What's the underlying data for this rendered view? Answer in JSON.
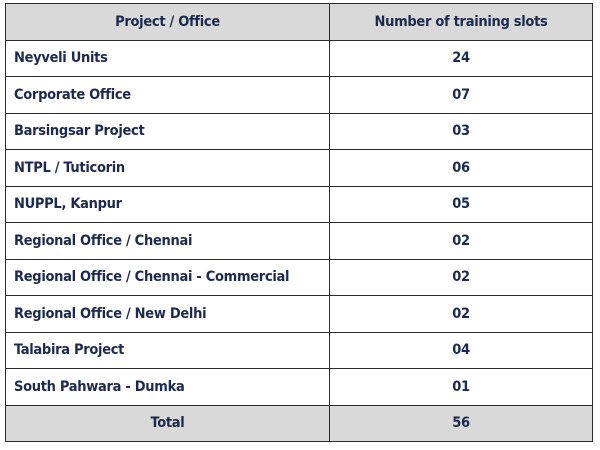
{
  "table": {
    "headers": [
      "Project / Office",
      "Number of training slots"
    ],
    "rows": [
      {
        "name": "Neyveli Units",
        "slots": "24"
      },
      {
        "name": "Corporate Office",
        "slots": "07"
      },
      {
        "name": "Barsingsar Project",
        "slots": "03"
      },
      {
        "name": "NTPL / Tuticorin",
        "slots": "06"
      },
      {
        "name": "NUPPL, Kanpur",
        "slots": "05"
      },
      {
        "name": "Regional Office / Chennai",
        "slots": "02"
      },
      {
        "name": "Regional Office / Chennai - Commercial",
        "slots": "02"
      },
      {
        "name": "Regional Office / New Delhi",
        "slots": "02"
      },
      {
        "name": "Talabira Project",
        "slots": "04"
      },
      {
        "name": "South Pahwara - Dumka",
        "slots": "01"
      }
    ],
    "total": {
      "label": "Total",
      "value": "56"
    }
  },
  "colors": {
    "header_bg": "#d9d9d9",
    "text": "#1b2a4e",
    "border": "#2b2b2b"
  }
}
